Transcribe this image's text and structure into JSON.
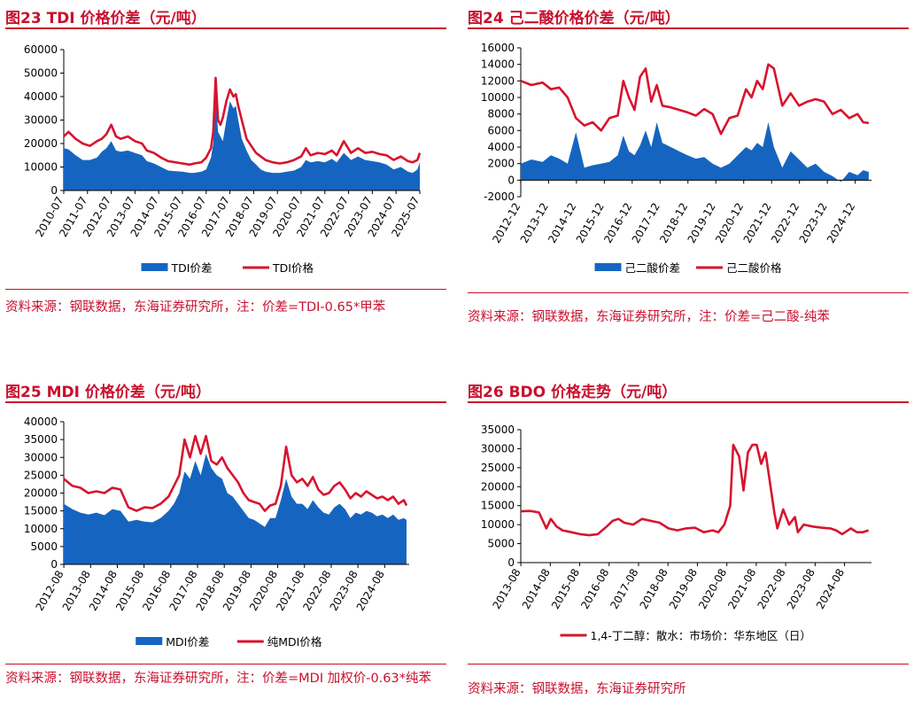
{
  "colors": {
    "accent": "#c8102e",
    "area": "#1565c0",
    "line": "#d7142e"
  },
  "panels": [
    {
      "title": "图23  TDI 价格价差（元/吨）",
      "source": "资料来源：钢联数据，东海证券研究所，注：价差=TDI-0.65*甲苯"
    },
    {
      "title": "图24  己二酸价格价差（元/吨）",
      "source": "资料来源：钢联数据，东海证券研究所，注：价差=己二酸-纯苯"
    },
    {
      "title": "图25  MDI 价格价差（元/吨）",
      "source": "资料来源：钢联数据，东海证券研究所，注：价差=MDI 加权价-0.63*纯苯"
    },
    {
      "title": "图26  BDO 价格走势（元/吨）",
      "source": "资料来源：钢联数据，东海证券研究所"
    }
  ],
  "chart_data": [
    {
      "type": "area+line",
      "title": "TDI 价格价差（元/吨）",
      "ylim": [
        0,
        60000
      ],
      "yticks": [
        0,
        10000,
        20000,
        30000,
        40000,
        50000,
        60000
      ],
      "xlim": [
        2010.5,
        2025.5
      ],
      "xticks": [
        "2010-07",
        "2011-07",
        "2012-07",
        "2013-07",
        "2014-07",
        "2015-07",
        "2016-07",
        "2017-07",
        "2018-07",
        "2019-07",
        "2020-07",
        "2021-07",
        "2022-07",
        "2023-07",
        "2024-07",
        "2025-07"
      ],
      "series": [
        {
          "name": "TDI价差",
          "kind": "area",
          "x": [
            2010.5,
            2010.7,
            2011.0,
            2011.3,
            2011.6,
            2011.9,
            2012.1,
            2012.3,
            2012.5,
            2012.7,
            2012.9,
            2013.2,
            2013.5,
            2013.8,
            2014.0,
            2014.3,
            2014.6,
            2014.9,
            2015.2,
            2015.5,
            2015.8,
            2016.0,
            2016.3,
            2016.5,
            2016.7,
            2016.8,
            2016.9,
            2017.0,
            2017.1,
            2017.2,
            2017.35,
            2017.5,
            2017.65,
            2017.75,
            2017.85,
            2018.0,
            2018.2,
            2018.4,
            2018.6,
            2018.8,
            2019.0,
            2019.3,
            2019.6,
            2019.9,
            2020.2,
            2020.5,
            2020.7,
            2020.9,
            2021.2,
            2021.5,
            2021.8,
            2022.0,
            2022.3,
            2022.6,
            2022.9,
            2023.2,
            2023.5,
            2023.8,
            2024.1,
            2024.4,
            2024.7,
            2025.0,
            2025.2,
            2025.4,
            2025.5
          ],
          "values": [
            18000,
            17500,
            15000,
            13000,
            13000,
            14000,
            16500,
            18000,
            21000,
            17000,
            16500,
            17000,
            16000,
            15000,
            12500,
            11500,
            10000,
            8500,
            8200,
            8000,
            7500,
            7500,
            8000,
            9000,
            14000,
            20000,
            41000,
            25000,
            23000,
            21000,
            30000,
            38000,
            35000,
            36000,
            30000,
            22000,
            17000,
            13000,
            11000,
            9000,
            8000,
            7500,
            7500,
            8000,
            8500,
            10000,
            13000,
            12000,
            12500,
            12000,
            13500,
            12000,
            16000,
            13000,
            14500,
            13000,
            12500,
            12000,
            11000,
            9000,
            10000,
            8000,
            7500,
            9000,
            12000
          ]
        },
        {
          "name": "TDI价格",
          "kind": "line",
          "x": [
            2010.5,
            2010.7,
            2011.0,
            2011.3,
            2011.6,
            2011.9,
            2012.1,
            2012.3,
            2012.5,
            2012.7,
            2012.9,
            2013.2,
            2013.5,
            2013.8,
            2014.0,
            2014.3,
            2014.6,
            2014.9,
            2015.2,
            2015.5,
            2015.8,
            2016.0,
            2016.3,
            2016.5,
            2016.7,
            2016.8,
            2016.9,
            2017.0,
            2017.1,
            2017.2,
            2017.35,
            2017.5,
            2017.65,
            2017.75,
            2017.85,
            2018.0,
            2018.2,
            2018.4,
            2018.6,
            2018.8,
            2019.0,
            2019.3,
            2019.6,
            2019.9,
            2020.2,
            2020.5,
            2020.7,
            2020.9,
            2021.2,
            2021.5,
            2021.8,
            2022.0,
            2022.3,
            2022.6,
            2022.9,
            2023.2,
            2023.5,
            2023.8,
            2024.1,
            2024.4,
            2024.7,
            2025.0,
            2025.2,
            2025.4,
            2025.5
          ],
          "values": [
            23000,
            25000,
            22000,
            20000,
            19000,
            21000,
            22000,
            24000,
            28000,
            23000,
            22000,
            23000,
            21000,
            20000,
            17000,
            16000,
            14000,
            12500,
            12000,
            11500,
            11000,
            11500,
            12000,
            14000,
            18000,
            25000,
            48000,
            30000,
            28000,
            31000,
            38000,
            43000,
            40000,
            41000,
            36000,
            30000,
            22000,
            19000,
            16000,
            14500,
            13000,
            12000,
            11500,
            12000,
            13000,
            14500,
            18000,
            15000,
            16000,
            15500,
            17000,
            15000,
            21000,
            16000,
            18000,
            16000,
            16500,
            15500,
            15000,
            13000,
            14500,
            12500,
            12000,
            13000,
            16000
          ]
        }
      ],
      "legend": [
        "TDI价差",
        "TDI价格"
      ]
    },
    {
      "type": "area+line",
      "title": "己二酸价格价差（元/吨）",
      "ylim": [
        -2000,
        16000
      ],
      "yticks": [
        -2000,
        0,
        2000,
        4000,
        6000,
        8000,
        10000,
        12000,
        14000,
        16000
      ],
      "xlim": [
        2012.92,
        2025.5
      ],
      "xticks": [
        "2012-12",
        "2013-12",
        "2014-12",
        "2015-12",
        "2016-12",
        "2017-12",
        "2018-12",
        "2019-12",
        "2020-12",
        "2021-12",
        "2022-12",
        "2023-12",
        "2024-12"
      ],
      "series": [
        {
          "name": "己二酸价差",
          "kind": "area",
          "x": [
            2012.92,
            2013.3,
            2013.7,
            2014.0,
            2014.3,
            2014.6,
            2014.9,
            2015.2,
            2015.5,
            2015.8,
            2016.1,
            2016.4,
            2016.6,
            2016.8,
            2017.0,
            2017.2,
            2017.4,
            2017.6,
            2017.8,
            2018.0,
            2018.3,
            2018.6,
            2018.9,
            2019.2,
            2019.5,
            2019.8,
            2020.1,
            2020.4,
            2020.7,
            2021.0,
            2021.2,
            2021.4,
            2021.6,
            2021.8,
            2022.0,
            2022.3,
            2022.6,
            2022.9,
            2023.2,
            2023.5,
            2023.8,
            2024.1,
            2024.4,
            2024.7,
            2025.0,
            2025.2,
            2025.4
          ],
          "values": [
            2000,
            2500,
            2200,
            3000,
            2600,
            2000,
            5800,
            1500,
            1800,
            2000,
            2200,
            3000,
            5400,
            3500,
            3000,
            4200,
            6000,
            4000,
            7000,
            4500,
            4000,
            3500,
            3000,
            2600,
            2800,
            2000,
            1500,
            2000,
            3000,
            4000,
            3600,
            4500,
            4000,
            7000,
            4000,
            1500,
            3500,
            2500,
            1500,
            2000,
            1000,
            500,
            -200,
            1000,
            600,
            1200,
            1000
          ]
        },
        {
          "name": "己二酸价格",
          "kind": "line",
          "x": [
            2012.92,
            2013.3,
            2013.7,
            2014.0,
            2014.3,
            2014.6,
            2014.9,
            2015.2,
            2015.5,
            2015.8,
            2016.1,
            2016.4,
            2016.6,
            2016.8,
            2017.0,
            2017.2,
            2017.4,
            2017.6,
            2017.8,
            2018.0,
            2018.3,
            2018.6,
            2018.9,
            2019.2,
            2019.5,
            2019.8,
            2020.1,
            2020.4,
            2020.7,
            2021.0,
            2021.2,
            2021.4,
            2021.6,
            2021.8,
            2022.0,
            2022.3,
            2022.6,
            2022.9,
            2023.2,
            2023.5,
            2023.8,
            2024.1,
            2024.4,
            2024.7,
            2025.0,
            2025.2,
            2025.4
          ],
          "values": [
            12000,
            11500,
            11800,
            11000,
            11200,
            10000,
            7500,
            6600,
            7000,
            6000,
            7500,
            7800,
            12000,
            10000,
            8500,
            12500,
            13500,
            9500,
            11500,
            9000,
            8800,
            8500,
            8200,
            7800,
            8600,
            8000,
            5600,
            7500,
            7800,
            11000,
            10000,
            12000,
            11000,
            14000,
            13500,
            9000,
            10500,
            9000,
            9500,
            9800,
            9500,
            8000,
            8500,
            7500,
            8000,
            7000,
            6900
          ]
        }
      ],
      "legend": [
        "己二酸价差",
        "己二酸价格"
      ]
    },
    {
      "type": "area+line",
      "title": "MDI 价格价差（元/吨）",
      "ylim": [
        0,
        40000
      ],
      "yticks": [
        0,
        5000,
        10000,
        15000,
        20000,
        25000,
        30000,
        35000,
        40000
      ],
      "xlim": [
        2012.58,
        2025.5
      ],
      "xticks": [
        "2012-08",
        "2013-08",
        "2014-08",
        "2015-08",
        "2016-08",
        "2017-08",
        "2018-08",
        "2019-08",
        "2020-08",
        "2021-08",
        "2022-08",
        "2023-08",
        "2024-08"
      ],
      "series": [
        {
          "name": "MDI价差",
          "kind": "area",
          "x": [
            2012.58,
            2012.9,
            2013.2,
            2013.5,
            2013.8,
            2014.1,
            2014.4,
            2014.7,
            2015.0,
            2015.3,
            2015.6,
            2015.9,
            2016.2,
            2016.5,
            2016.7,
            2016.9,
            2017.1,
            2017.3,
            2017.5,
            2017.7,
            2017.9,
            2018.1,
            2018.3,
            2018.5,
            2018.7,
            2018.9,
            2019.1,
            2019.3,
            2019.5,
            2019.7,
            2019.9,
            2020.1,
            2020.3,
            2020.5,
            2020.7,
            2020.9,
            2021.1,
            2021.3,
            2021.5,
            2021.7,
            2021.9,
            2022.1,
            2022.3,
            2022.5,
            2022.7,
            2022.9,
            2023.1,
            2023.3,
            2023.5,
            2023.7,
            2023.9,
            2024.1,
            2024.3,
            2024.5,
            2024.7,
            2024.9,
            2025.1,
            2025.3,
            2025.4
          ],
          "values": [
            17000,
            15500,
            14500,
            14000,
            14500,
            13800,
            15500,
            15000,
            12000,
            12500,
            12000,
            11800,
            13000,
            15000,
            17000,
            20000,
            26000,
            24000,
            29000,
            25000,
            31000,
            27000,
            25000,
            24000,
            20000,
            19000,
            17000,
            15000,
            13000,
            12500,
            11500,
            10500,
            13000,
            13000,
            18000,
            24000,
            19000,
            17000,
            17000,
            15500,
            18000,
            16000,
            14500,
            14000,
            16000,
            17000,
            15500,
            13000,
            14500,
            14000,
            15000,
            14500,
            13500,
            14000,
            13000,
            14000,
            12500,
            13000,
            12500
          ]
        },
        {
          "name": "纯MDI价格",
          "kind": "line",
          "x": [
            2012.58,
            2012.9,
            2013.2,
            2013.5,
            2013.8,
            2014.1,
            2014.4,
            2014.7,
            2015.0,
            2015.3,
            2015.6,
            2015.9,
            2016.2,
            2016.5,
            2016.7,
            2016.9,
            2017.1,
            2017.3,
            2017.5,
            2017.7,
            2017.9,
            2018.1,
            2018.3,
            2018.5,
            2018.7,
            2018.9,
            2019.1,
            2019.3,
            2019.5,
            2019.7,
            2019.9,
            2020.1,
            2020.3,
            2020.5,
            2020.7,
            2020.9,
            2021.1,
            2021.3,
            2021.5,
            2021.7,
            2021.9,
            2022.1,
            2022.3,
            2022.5,
            2022.7,
            2022.9,
            2023.1,
            2023.3,
            2023.5,
            2023.7,
            2023.9,
            2024.1,
            2024.3,
            2024.5,
            2024.7,
            2024.9,
            2025.1,
            2025.3,
            2025.4
          ],
          "values": [
            24000,
            22000,
            21500,
            20000,
            20500,
            20000,
            21500,
            21000,
            16000,
            15000,
            16000,
            15800,
            17000,
            19000,
            22000,
            25000,
            35000,
            30000,
            36000,
            31000,
            36000,
            29000,
            28000,
            30000,
            27000,
            25000,
            23000,
            20000,
            18000,
            17500,
            17000,
            15000,
            16500,
            17000,
            22000,
            33000,
            25000,
            23000,
            24000,
            22000,
            24500,
            21000,
            19500,
            20000,
            22000,
            23000,
            21000,
            18500,
            20000,
            19000,
            20500,
            19500,
            18500,
            19000,
            18000,
            19000,
            17000,
            18000,
            16500
          ]
        }
      ],
      "legend": [
        "MDI价差",
        "纯MDI价格"
      ]
    },
    {
      "type": "line",
      "title": "BDO 价格走势（元/吨）",
      "ylim": [
        0,
        35000
      ],
      "yticks": [
        0,
        5000,
        10000,
        15000,
        20000,
        25000,
        30000,
        35000
      ],
      "xlim": [
        2013.58,
        2025.5
      ],
      "xticks": [
        "2013-08",
        "2014-08",
        "2015-08",
        "2016-08",
        "2017-08",
        "2018-08",
        "2019-08",
        "2020-08",
        "2021-08",
        "2022-08",
        "2023-08",
        "2024-08"
      ],
      "series": [
        {
          "name": "1,4-丁二醇：散水：市场价：华东地区（日）",
          "kind": "line",
          "x": [
            2013.58,
            2013.9,
            2014.2,
            2014.45,
            2014.6,
            2014.8,
            2015.0,
            2015.3,
            2015.6,
            2015.9,
            2016.2,
            2016.5,
            2016.7,
            2016.9,
            2017.1,
            2017.4,
            2017.7,
            2018.0,
            2018.3,
            2018.6,
            2018.9,
            2019.2,
            2019.5,
            2019.8,
            2020.1,
            2020.3,
            2020.5,
            2020.7,
            2020.8,
            2021.0,
            2021.15,
            2021.3,
            2021.45,
            2021.6,
            2021.75,
            2021.9,
            2022.05,
            2022.2,
            2022.3,
            2022.5,
            2022.7,
            2022.9,
            2023.0,
            2023.2,
            2023.5,
            2023.8,
            2024.1,
            2024.3,
            2024.5,
            2024.8,
            2025.0,
            2025.2,
            2025.4
          ],
          "values": [
            13500,
            13600,
            13200,
            9000,
            11500,
            9500,
            8500,
            8000,
            7500,
            7200,
            7500,
            9500,
            11000,
            11500,
            10500,
            10000,
            11500,
            11000,
            10500,
            9000,
            8500,
            9000,
            9200,
            8000,
            8500,
            8000,
            10000,
            15000,
            31000,
            28000,
            19000,
            29000,
            31000,
            31000,
            26000,
            29000,
            21000,
            13000,
            9000,
            14000,
            10000,
            12000,
            8000,
            10000,
            9500,
            9200,
            9000,
            8500,
            7500,
            9000,
            8000,
            8000,
            8500
          ]
        }
      ],
      "legend": [
        "1,4-丁二醇：散水：市场价：华东地区（日）"
      ]
    }
  ]
}
